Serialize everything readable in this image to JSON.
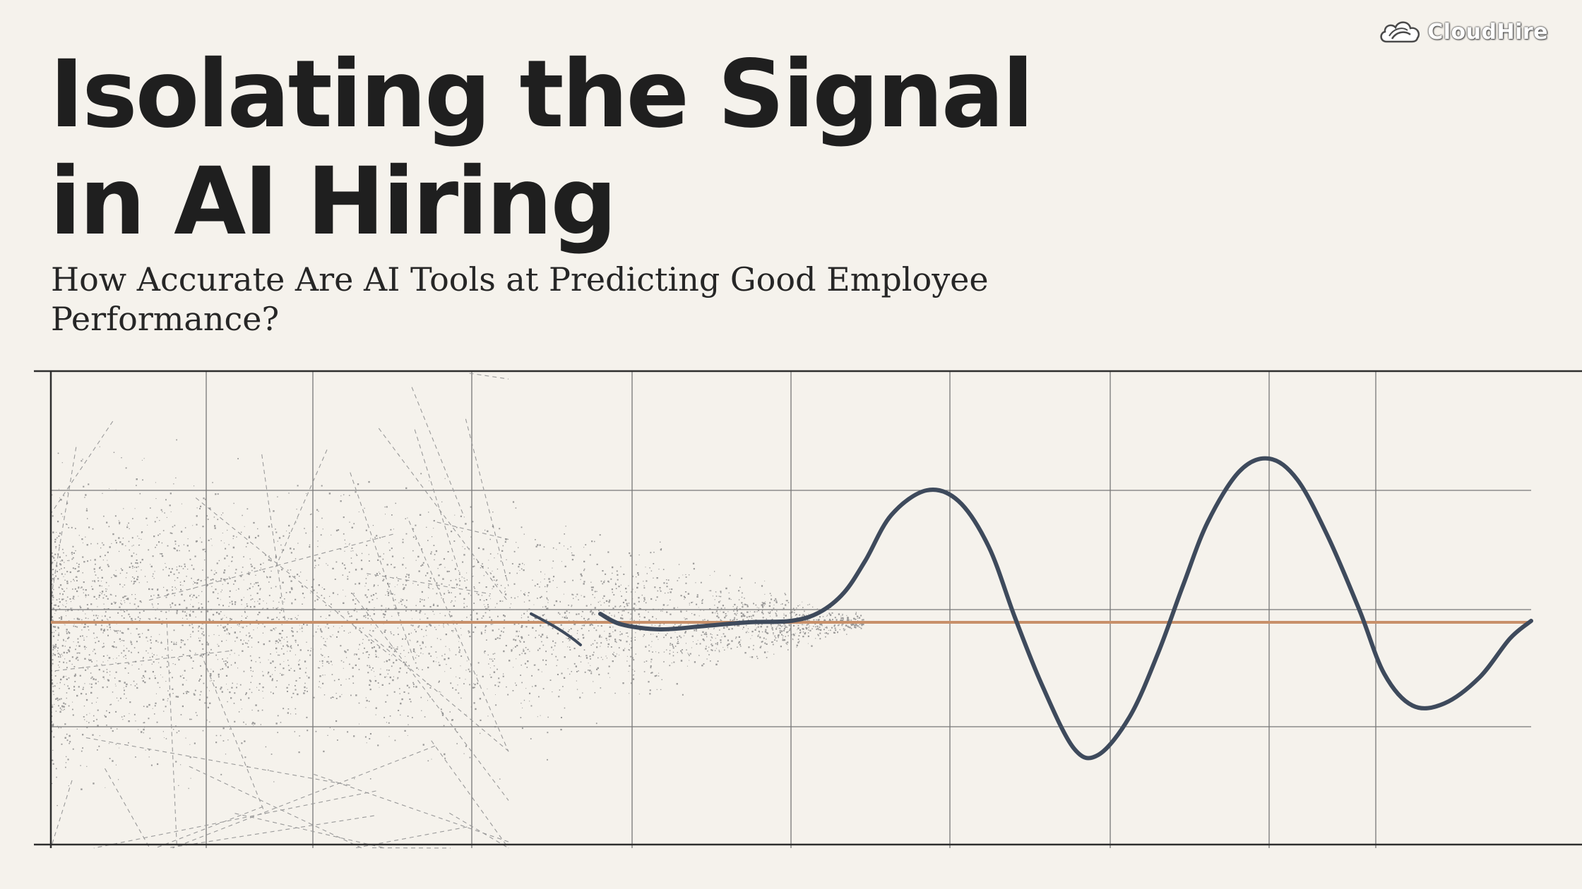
{
  "header": {
    "title_line1": "Isolating the Signal",
    "title_line2": "in AI Hiring",
    "subtitle_line1": "How Accurate Are AI Tools at Predicting Good Employee",
    "subtitle_line2": "Performance?"
  },
  "logo": {
    "text": "CloudHire",
    "icon": "cloud-icon"
  },
  "illustration": {
    "icons": [
      "noise-dots",
      "signal-wave",
      "baseline"
    ],
    "colors": {
      "background": "#f5f2ec",
      "signal": "#3e4a5c",
      "baseline": "#c8906a",
      "grid": "#777777",
      "noise": "#8a8a8a"
    }
  }
}
